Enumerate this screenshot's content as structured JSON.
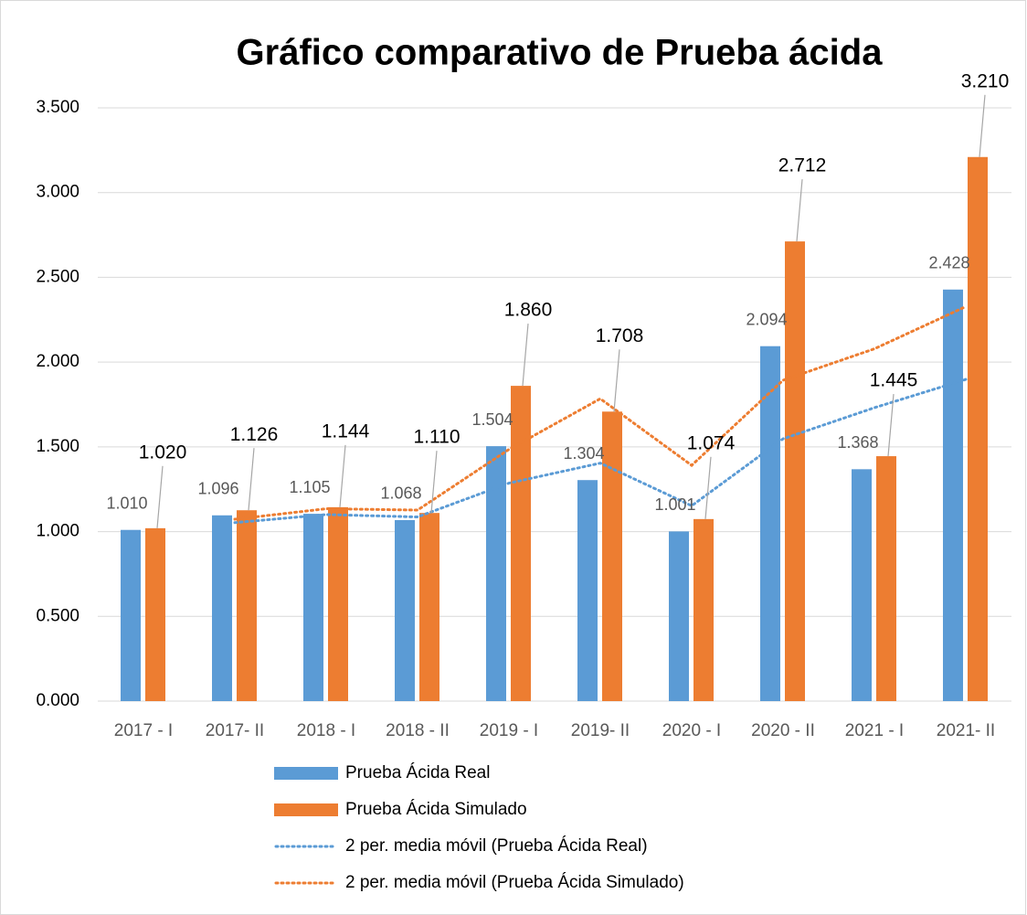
{
  "chart_data": {
    "type": "bar",
    "title": "Gráfico comparativo de Prueba ácida",
    "categories": [
      "2017 - I",
      "2017- II",
      "2018 - I",
      "2018 - II",
      "2019 - I",
      "2019- II",
      "2020 - I",
      "2020 - II",
      "2021 - I",
      "2021- II"
    ],
    "series": [
      {
        "name": "Prueba Ácida Real",
        "color": "#5b9bd5",
        "values": [
          1.01,
          1.096,
          1.105,
          1.068,
          1.504,
          1.304,
          1.001,
          2.094,
          1.368,
          2.428
        ],
        "value_labels": [
          "1.010",
          "1.096",
          "1.105",
          "1.068",
          "1.504",
          "1.304",
          "1.001",
          "2.094",
          "1.368",
          "2.428"
        ]
      },
      {
        "name": "Prueba Ácida Simulado",
        "color": "#ed7d31",
        "values": [
          1.02,
          1.126,
          1.144,
          1.11,
          1.86,
          1.708,
          1.074,
          2.712,
          1.445,
          3.21
        ],
        "value_labels": [
          "1.020",
          "1.126",
          "1.144",
          "1.110",
          "1.860",
          "1.708",
          "1.074",
          "2.712",
          "1.445",
          "3.210"
        ]
      }
    ],
    "trendlines": [
      {
        "name": "2 per. media móvil (Prueba Ácida Real)",
        "series": 0,
        "period": 2,
        "color": "#5b9bd5"
      },
      {
        "name": "2 per. media móvil (Prueba Ácida Simulado)",
        "series": 1,
        "period": 2,
        "color": "#ed7d31"
      }
    ],
    "ylim": [
      0,
      3.5
    ],
    "yticks": [
      {
        "value": 0,
        "label": "0.000"
      },
      {
        "value": 0.5,
        "label": "0.500"
      },
      {
        "value": 1,
        "label": "1.000"
      },
      {
        "value": 1.5,
        "label": "1.500"
      },
      {
        "value": 2,
        "label": "2.000"
      },
      {
        "value": 2.5,
        "label": "2.500"
      },
      {
        "value": 3,
        "label": "3.000"
      },
      {
        "value": 3.5,
        "label": "3.500"
      }
    ],
    "grid": true
  }
}
